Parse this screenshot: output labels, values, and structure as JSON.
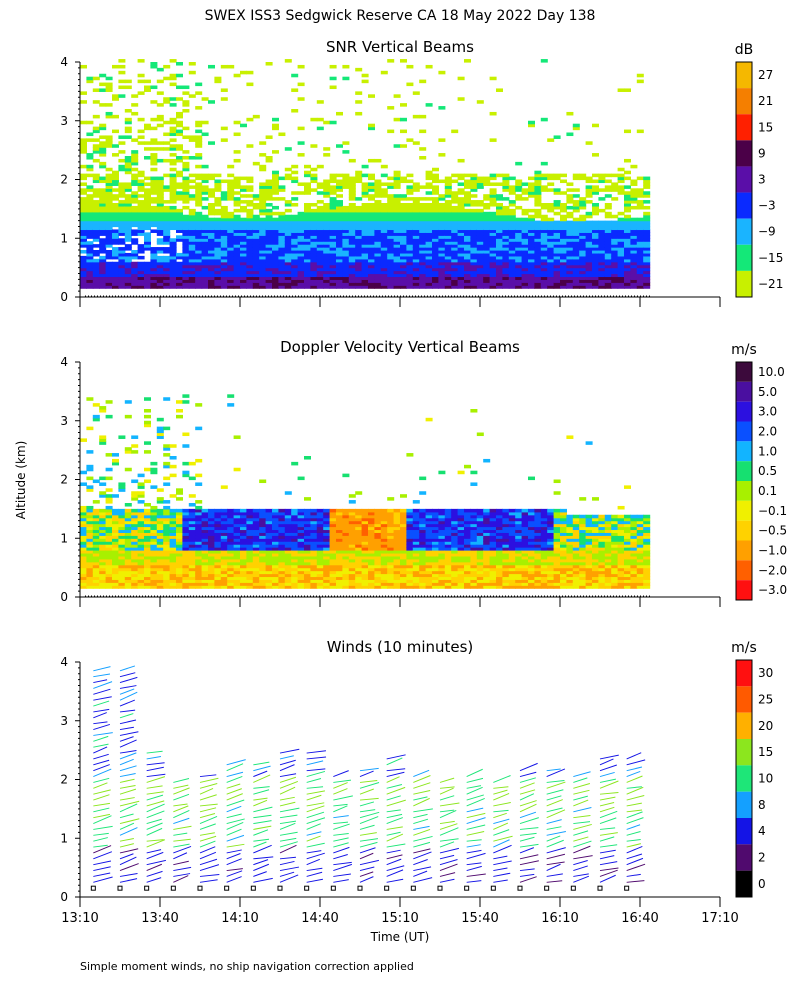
{
  "title": "SWEX ISS3 Sedgwick Reserve CA  18 May 2022 Day 138",
  "ylabel": "Altitude (km)",
  "xlabel": "Time (UT)",
  "footnote": "Simple moment winds, no ship navigation correction applied",
  "time_ticks": [
    "13:10",
    "13:40",
    "14:10",
    "14:40",
    "15:10",
    "15:40",
    "16:10",
    "16:40",
    "17:10"
  ],
  "alt_ticks": [
    "0",
    "1",
    "2",
    "3",
    "4"
  ],
  "chart_data": [
    {
      "type": "heatmap",
      "title": "SNR Vertical Beams",
      "colorbar_unit": "dB",
      "colorbar_labels": [
        "27",
        "21",
        "15",
        "9",
        "3",
        "−3",
        "−9",
        "−15",
        "−21"
      ],
      "colorbar_colors": [
        "#f5b800",
        "#f57f00",
        "#ff2000",
        "#4b0048",
        "#5a0ea8",
        "#0a2aff",
        "#1ab4ff",
        "#14e878",
        "#c8f000"
      ],
      "x_range_hours": [
        13.1667,
        17.1667
      ],
      "y_range_km": [
        0,
        4
      ],
      "data_extent_hours": [
        13.1667,
        16.7
      ],
      "data_extent_km": [
        0.15,
        4.0
      ],
      "description_layers": [
        {
          "from_km": 0.15,
          "to_km": 0.5,
          "level_db": 3
        },
        {
          "from_km": 0.5,
          "to_km": 1.2,
          "level_db": -3
        },
        {
          "from_km": 1.2,
          "to_km": 1.5,
          "level_db": -15
        },
        {
          "from_km": 1.5,
          "to_km": 4.0,
          "level_db": -21
        }
      ]
    },
    {
      "type": "heatmap",
      "title": "Doppler Velocity Vertical Beams",
      "colorbar_unit": "m/s",
      "colorbar_labels": [
        "10.0",
        "5.0",
        "3.0",
        "2.0",
        "1.0",
        "0.5",
        "0.1",
        "−0.1",
        "−0.5",
        "−1.0",
        "−2.0",
        "−3.0"
      ],
      "colorbar_colors": [
        "#3c0a3c",
        "#4a0fa0",
        "#2c10e0",
        "#0a50ff",
        "#12b4ff",
        "#16e070",
        "#a8f000",
        "#f0f000",
        "#ffd200",
        "#ffa000",
        "#ff6000",
        "#ff1010"
      ],
      "x_range_hours": [
        13.1667,
        17.1667
      ],
      "y_range_km": [
        0,
        4
      ],
      "data_extent_hours": [
        13.1667,
        16.7
      ],
      "data_extent_km": [
        0.15,
        3.4
      ]
    },
    {
      "type": "scatter",
      "title": "Winds (10 minutes)",
      "colorbar_unit": "m/s",
      "colorbar_labels": [
        "30",
        "25",
        "20",
        "15",
        "10",
        "8",
        "4",
        "2",
        "0"
      ],
      "colorbar_colors": [
        "#ff1010",
        "#ff5a00",
        "#ffb000",
        "#8ce61e",
        "#1ee678",
        "#14a0ff",
        "#1414e6",
        "#500a6e",
        "#000000"
      ],
      "x_range_hours": [
        13.1667,
        17.1667
      ],
      "y_range_km": [
        0,
        4
      ],
      "profile_interval_min": 10,
      "first_profile_hours": 13.25,
      "last_profile_hours": 16.7,
      "max_height_km": 4.0
    }
  ]
}
